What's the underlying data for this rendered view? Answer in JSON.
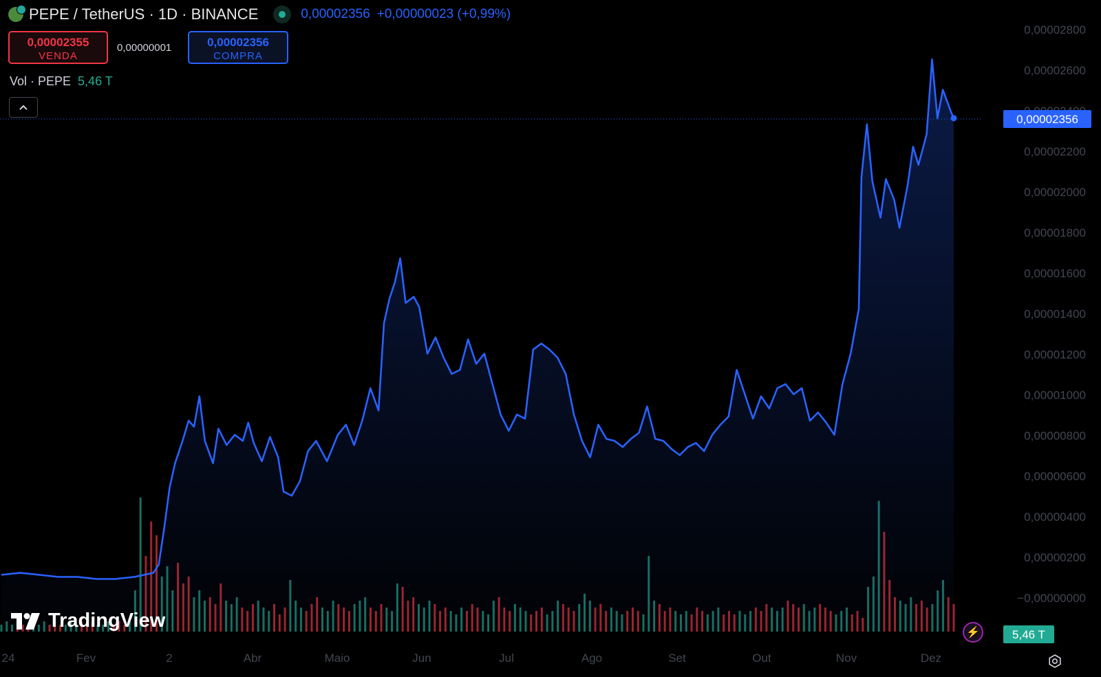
{
  "header": {
    "symbol": "PEPE / TetherUS · 1D · BINANCE",
    "last_price": "0,00002356",
    "change": "+0,00000023 (+0,99%)"
  },
  "trade": {
    "sell_price": "0,00002355",
    "sell_label": "VENDA",
    "spread": "0,00000001",
    "buy_price": "0,00002356",
    "buy_label": "COMPRA"
  },
  "volume_legend": {
    "label": "Vol · PEPE",
    "value": "5,46 T"
  },
  "brand": "TradingView",
  "colors": {
    "line": "#2962ff",
    "up": "#22ab94",
    "down": "#f23645",
    "background": "#000000",
    "axis_text": "#434651"
  },
  "icons": [
    "pepe-logo-icon",
    "market-status-icon",
    "chevron-up-icon",
    "tradingview-logo-icon",
    "lightning-icon",
    "settings-icon"
  ],
  "chart_data": {
    "type": "area",
    "series": [
      {
        "points": [
          [
            "2024-01-01",
            1.1e-06
          ],
          [
            "2024-01-08",
            1.2e-06
          ],
          [
            "2024-01-15",
            1.1e-06
          ],
          [
            "2024-01-22",
            1e-06
          ],
          [
            "2024-01-29",
            1e-06
          ],
          [
            "2024-02-05",
            9e-07
          ],
          [
            "2024-02-12",
            9e-07
          ],
          [
            "2024-02-19",
            1e-06
          ],
          [
            "2024-02-26",
            1.2e-06
          ],
          [
            "2024-02-28",
            1.6e-06
          ],
          [
            "2024-03-01",
            3.4e-06
          ],
          [
            "2024-03-03",
            5.4e-06
          ],
          [
            "2024-03-05",
            6.6e-06
          ],
          [
            "2024-03-08",
            7.8e-06
          ],
          [
            "2024-03-10",
            8.7e-06
          ],
          [
            "2024-03-12",
            8.4e-06
          ],
          [
            "2024-03-14",
            9.9e-06
          ],
          [
            "2024-03-16",
            7.7e-06
          ],
          [
            "2024-03-19",
            6.6e-06
          ],
          [
            "2024-03-21",
            8.3e-06
          ],
          [
            "2024-03-24",
            7.5e-06
          ],
          [
            "2024-03-27",
            8e-06
          ],
          [
            "2024-03-30",
            7.7e-06
          ],
          [
            "2024-04-01",
            8.6e-06
          ],
          [
            "2024-04-03",
            7.6e-06
          ],
          [
            "2024-04-06",
            6.7e-06
          ],
          [
            "2024-04-09",
            7.9e-06
          ],
          [
            "2024-04-12",
            6.9e-06
          ],
          [
            "2024-04-14",
            5.2e-06
          ],
          [
            "2024-04-17",
            5e-06
          ],
          [
            "2024-04-20",
            5.7e-06
          ],
          [
            "2024-04-23",
            7.2e-06
          ],
          [
            "2024-04-26",
            7.7e-06
          ],
          [
            "2024-04-30",
            6.7e-06
          ],
          [
            "2024-05-04",
            8e-06
          ],
          [
            "2024-05-07",
            8.5e-06
          ],
          [
            "2024-05-10",
            7.5e-06
          ],
          [
            "2024-05-13",
            8.7e-06
          ],
          [
            "2024-05-16",
            1.03e-05
          ],
          [
            "2024-05-19",
            9.2e-06
          ],
          [
            "2024-05-21",
            1.35e-05
          ],
          [
            "2024-05-23",
            1.47e-05
          ],
          [
            "2024-05-25",
            1.55e-05
          ],
          [
            "2024-05-27",
            1.67e-05
          ],
          [
            "2024-05-29",
            1.45e-05
          ],
          [
            "2024-06-01",
            1.48e-05
          ],
          [
            "2024-06-03",
            1.43e-05
          ],
          [
            "2024-06-06",
            1.2e-05
          ],
          [
            "2024-06-09",
            1.28e-05
          ],
          [
            "2024-06-12",
            1.18e-05
          ],
          [
            "2024-06-15",
            1.1e-05
          ],
          [
            "2024-06-18",
            1.12e-05
          ],
          [
            "2024-06-21",
            1.27e-05
          ],
          [
            "2024-06-24",
            1.15e-05
          ],
          [
            "2024-06-27",
            1.2e-05
          ],
          [
            "2024-06-30",
            1.05e-05
          ],
          [
            "2024-07-03",
            9e-06
          ],
          [
            "2024-07-06",
            8.2e-06
          ],
          [
            "2024-07-09",
            9e-06
          ],
          [
            "2024-07-12",
            8.8e-06
          ],
          [
            "2024-07-15",
            1.22e-05
          ],
          [
            "2024-07-18",
            1.25e-05
          ],
          [
            "2024-07-21",
            1.22e-05
          ],
          [
            "2024-07-24",
            1.18e-05
          ],
          [
            "2024-07-27",
            1.1e-05
          ],
          [
            "2024-07-30",
            9e-06
          ],
          [
            "2024-08-02",
            7.7e-06
          ],
          [
            "2024-08-05",
            6.9e-06
          ],
          [
            "2024-08-08",
            8.5e-06
          ],
          [
            "2024-08-11",
            7.8e-06
          ],
          [
            "2024-08-14",
            7.7e-06
          ],
          [
            "2024-08-17",
            7.4e-06
          ],
          [
            "2024-08-20",
            7.8e-06
          ],
          [
            "2024-08-23",
            8.1e-06
          ],
          [
            "2024-08-26",
            9.4e-06
          ],
          [
            "2024-08-29",
            7.8e-06
          ],
          [
            "2024-09-01",
            7.7e-06
          ],
          [
            "2024-09-04",
            7.3e-06
          ],
          [
            "2024-09-07",
            7e-06
          ],
          [
            "2024-09-10",
            7.4e-06
          ],
          [
            "2024-09-13",
            7.6e-06
          ],
          [
            "2024-09-16",
            7.2e-06
          ],
          [
            "2024-09-19",
            8e-06
          ],
          [
            "2024-09-22",
            8.5e-06
          ],
          [
            "2024-09-25",
            8.9e-06
          ],
          [
            "2024-09-28",
            1.12e-05
          ],
          [
            "2024-10-01",
            1e-05
          ],
          [
            "2024-10-04",
            8.8e-06
          ],
          [
            "2024-10-07",
            9.9e-06
          ],
          [
            "2024-10-10",
            9.3e-06
          ],
          [
            "2024-10-13",
            1.03e-05
          ],
          [
            "2024-10-16",
            1.05e-05
          ],
          [
            "2024-10-19",
            1e-05
          ],
          [
            "2024-10-22",
            1.03e-05
          ],
          [
            "2024-10-25",
            8.7e-06
          ],
          [
            "2024-10-28",
            9.1e-06
          ],
          [
            "2024-10-31",
            8.6e-06
          ],
          [
            "2024-11-03",
            8e-06
          ],
          [
            "2024-11-06",
            1.05e-05
          ],
          [
            "2024-11-09",
            1.2e-05
          ],
          [
            "2024-11-12",
            1.42e-05
          ],
          [
            "2024-11-13",
            2.07e-05
          ],
          [
            "2024-11-15",
            2.33e-05
          ],
          [
            "2024-11-17",
            2.05e-05
          ],
          [
            "2024-11-20",
            1.87e-05
          ],
          [
            "2024-11-22",
            2.06e-05
          ],
          [
            "2024-11-25",
            1.96e-05
          ],
          [
            "2024-11-27",
            1.82e-05
          ],
          [
            "2024-11-30",
            2.03e-05
          ],
          [
            "2024-12-02",
            2.22e-05
          ],
          [
            "2024-12-04",
            2.13e-05
          ],
          [
            "2024-12-07",
            2.28e-05
          ],
          [
            "2024-12-09",
            2.65e-05
          ],
          [
            "2024-12-11",
            2.36e-05
          ],
          [
            "2024-12-13",
            2.5e-05
          ],
          [
            "2024-12-16",
            2.39e-05
          ],
          [
            "2024-12-17",
            2.36e-05
          ]
        ]
      }
    ],
    "volume": [
      0.2,
      0.3,
      0.2,
      0.3,
      0.2,
      0.2,
      0.3,
      0.2,
      0.3,
      0.2,
      0.3,
      0.2,
      0.2,
      0.3,
      0.2,
      0.3,
      0.2,
      0.3,
      0.2,
      0.2,
      0.3,
      0.2,
      0.3,
      0.2,
      0.3,
      1.2,
      3.9,
      2.2,
      3.2,
      2.8,
      1.6,
      1.9,
      1.2,
      2.0,
      1.4,
      1.6,
      1.0,
      1.2,
      0.9,
      1.0,
      0.8,
      1.4,
      0.9,
      0.8,
      1.0,
      0.7,
      0.6,
      0.8,
      0.9,
      0.7,
      0.6,
      0.8,
      0.5,
      0.7,
      1.5,
      0.9,
      0.7,
      0.6,
      0.8,
      1.0,
      0.7,
      0.6,
      0.9,
      0.8,
      0.7,
      0.6,
      0.8,
      0.9,
      1.0,
      0.7,
      0.6,
      0.8,
      0.7,
      0.6,
      1.4,
      1.3,
      0.9,
      1.0,
      0.8,
      0.7,
      0.9,
      0.8,
      0.6,
      0.7,
      0.6,
      0.5,
      0.7,
      0.6,
      0.8,
      0.7,
      0.6,
      0.5,
      0.9,
      1.0,
      0.7,
      0.6,
      0.8,
      0.7,
      0.6,
      0.5,
      0.6,
      0.7,
      0.5,
      0.6,
      0.9,
      0.8,
      0.7,
      0.6,
      0.8,
      1.1,
      0.9,
      0.7,
      0.8,
      0.6,
      0.7,
      0.6,
      0.5,
      0.6,
      0.7,
      0.6,
      0.5,
      2.2,
      0.9,
      0.8,
      0.6,
      0.7,
      0.6,
      0.5,
      0.6,
      0.5,
      0.7,
      0.6,
      0.5,
      0.6,
      0.7,
      0.5,
      0.6,
      0.5,
      0.6,
      0.5,
      0.6,
      0.7,
      0.6,
      0.8,
      0.7,
      0.6,
      0.7,
      0.9,
      0.8,
      0.7,
      0.8,
      0.6,
      0.7,
      0.8,
      0.7,
      0.6,
      0.5,
      0.6,
      0.7,
      0.5,
      0.6,
      0.4,
      1.3,
      1.6,
      3.8,
      2.9,
      1.5,
      1.0,
      0.9,
      0.8,
      1.0,
      0.8,
      0.9,
      0.7,
      0.8,
      1.2,
      1.5,
      1.0,
      0.8
    ],
    "yaxis_ticks": [
      "0,00002800",
      "0,00002600",
      "0,00002400",
      "0,00002200",
      "0,00002000",
      "0,00001800",
      "0,00001600",
      "0,00001400",
      "0,00001200",
      "0,00001000",
      "0,00000800",
      "0,00000600",
      "0,00000400",
      "0,00000200",
      "−0,00000000"
    ],
    "xaxis_ticks": [
      "24",
      "Fev",
      "2",
      "Abr",
      "Maio",
      "Jun",
      "Jul",
      "Ago",
      "Set",
      "Out",
      "Nov",
      "Dez"
    ],
    "ylim": [
      -2e-06,
      2.9e-05
    ],
    "current_price_label": "0,00002356",
    "current_volume_label": "5,46 T",
    "grid": false
  }
}
